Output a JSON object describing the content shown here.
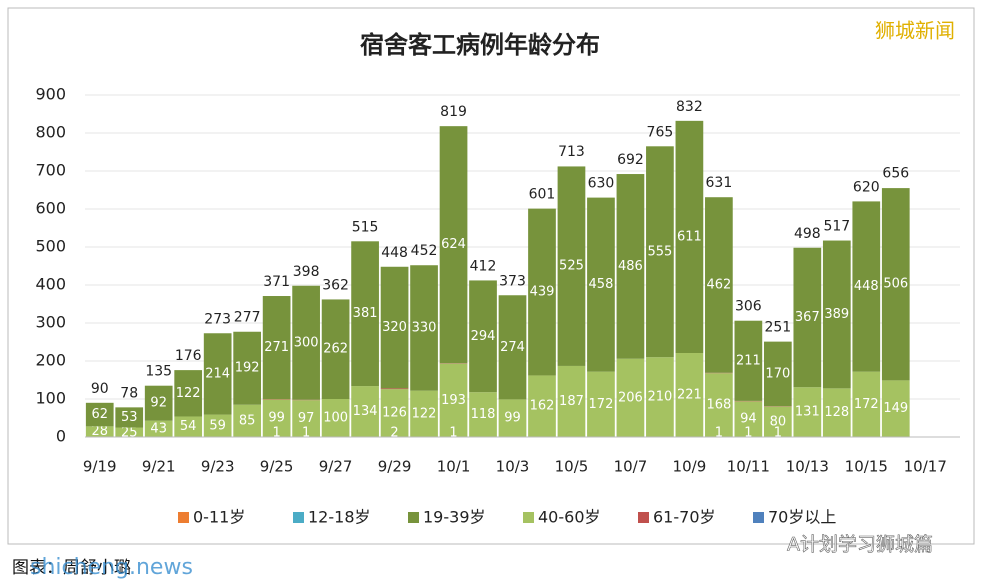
{
  "chart_data": {
    "type": "stacked_bar",
    "title": "宿舍客工病例年龄分布",
    "categories": [
      "9/19",
      null,
      "9/21",
      null,
      "9/23",
      null,
      "9/25",
      null,
      "9/27",
      null,
      "9/29",
      null,
      "10/1",
      null,
      "10/3",
      null,
      "10/5",
      null,
      "10/7",
      null,
      "10/9",
      null,
      "10/11",
      null,
      "10/13",
      null,
      "10/15",
      null,
      "10/17"
    ],
    "series": [
      {
        "name": "0-11岁",
        "color": "#ed7d31",
        "values": [
          null,
          null,
          null,
          null,
          null,
          null,
          null,
          null,
          null,
          null,
          null,
          null,
          null,
          null,
          null,
          null,
          null,
          null,
          null,
          null,
          null,
          null,
          null,
          null,
          null,
          null,
          null,
          null,
          null
        ]
      },
      {
        "name": "12-18岁",
        "color": "#4bacc6",
        "values": [
          null,
          null,
          null,
          null,
          null,
          null,
          null,
          null,
          null,
          null,
          null,
          null,
          null,
          null,
          null,
          null,
          null,
          null,
          null,
          null,
          null,
          null,
          null,
          null,
          null,
          null,
          null,
          null,
          null
        ]
      },
      {
        "name": "40-60岁",
        "color": "#a5c261",
        "values": [
          28,
          25,
          43,
          54,
          59,
          85,
          99,
          97,
          100,
          134,
          126,
          122,
          193,
          118,
          99,
          162,
          187,
          172,
          206,
          210,
          221,
          168,
          94,
          80,
          131,
          128,
          172,
          149,
          null
        ]
      },
      {
        "name": "61-70岁",
        "color": "#c0504d",
        "values": [
          null,
          null,
          null,
          null,
          null,
          null,
          1,
          1,
          null,
          null,
          2,
          null,
          1,
          null,
          null,
          null,
          null,
          null,
          null,
          null,
          null,
          1,
          1,
          1,
          null,
          null,
          null,
          null,
          null
        ]
      },
      {
        "name": "70岁以上",
        "color": "#4f81bd",
        "values": [
          null,
          null,
          null,
          null,
          null,
          null,
          null,
          null,
          null,
          null,
          null,
          null,
          null,
          null,
          null,
          null,
          null,
          null,
          null,
          null,
          null,
          null,
          null,
          null,
          null,
          null,
          null,
          null,
          null
        ]
      },
      {
        "name": "19-39岁",
        "color": "#77933c",
        "values": [
          62,
          53,
          92,
          122,
          214,
          192,
          271,
          300,
          262,
          381,
          320,
          330,
          624,
          294,
          274,
          439,
          525,
          458,
          486,
          555,
          611,
          462,
          211,
          170,
          367,
          389,
          448,
          506,
          null
        ]
      }
    ],
    "totals": [
      90,
      78,
      135,
      176,
      273,
      277,
      371,
      398,
      362,
      515,
      448,
      452,
      819,
      412,
      373,
      601,
      713,
      630,
      692,
      765,
      832,
      631,
      306,
      251,
      498,
      517,
      620,
      656,
      null
    ],
    "legend_order": [
      0,
      1,
      5,
      2,
      3,
      4
    ],
    "ylim": [
      0,
      900
    ],
    "yticks": [
      0,
      100,
      200,
      300,
      400,
      500,
      600,
      700,
      800,
      900
    ],
    "grid": true
  },
  "watermarks": {
    "top_right": "狮城新闻",
    "bottom_right": "A计划学习狮城篇",
    "bottom_left": "shicheng.news",
    "credit": "图表：周舒小璐"
  }
}
